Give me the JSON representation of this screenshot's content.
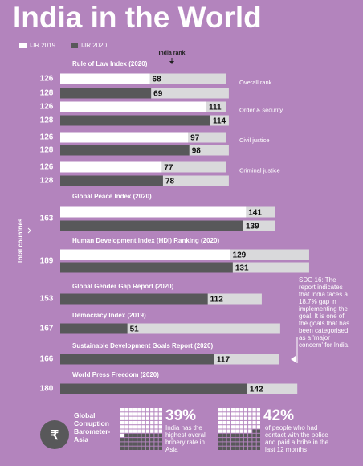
{
  "title": "India in the World",
  "chart_data": {
    "type": "bar",
    "legend": [
      {
        "name": "IJR 2019",
        "color": "#ffffff"
      },
      {
        "name": "IJR 2020",
        "color": "#58585a"
      }
    ],
    "value_axis_label": "India rank",
    "total_label": "Total countries",
    "track_color": "#d9d9db",
    "groups": [
      {
        "title": "Rule of Law Index (2020)",
        "rows": [
          {
            "label": "Overall rank",
            "totals": [
              126,
              128
            ],
            "values": [
              68,
              69
            ]
          },
          {
            "label": "Order & security",
            "totals": [
              126,
              128
            ],
            "values": [
              111,
              114
            ]
          },
          {
            "label": "Civil justice",
            "totals": [
              126,
              128
            ],
            "values": [
              97,
              98
            ]
          },
          {
            "label": "Criminal justice",
            "totals": [
              126,
              128
            ],
            "values": [
              77,
              78
            ]
          }
        ]
      },
      {
        "title": "Global Peace Index (2020)",
        "total": 163,
        "values": [
          141,
          139
        ]
      },
      {
        "title": "Human Development Index (HDI) Ranking (2020)",
        "total": 189,
        "values": [
          129,
          131
        ]
      },
      {
        "title": "Global Gender Gap Report (2020)",
        "total": 153,
        "value": 112
      },
      {
        "title": "Democracy Index (2019)",
        "total": 167,
        "value": 51
      },
      {
        "title": "Sustainable Development Goals Report (2020)",
        "total": 166,
        "value": 117
      },
      {
        "title": "World Press Freedom (2020)",
        "total": 180,
        "value": 142
      }
    ],
    "note": "SDG 16: The report indicates that India faces a 18.7% gap in implementing the goal. It is one of the goals that has been categorised as a 'major concern' for India."
  },
  "footer": {
    "title": "Global Corruption Barometer-Asia",
    "stats": [
      {
        "value": 39,
        "value_label": "39%",
        "text": "India has the highest overall bribery rate in Asia"
      },
      {
        "value": 42,
        "value_label": "42%",
        "text": "of people who had contact with the police and paid a bribe in the last 12 months"
      }
    ]
  }
}
